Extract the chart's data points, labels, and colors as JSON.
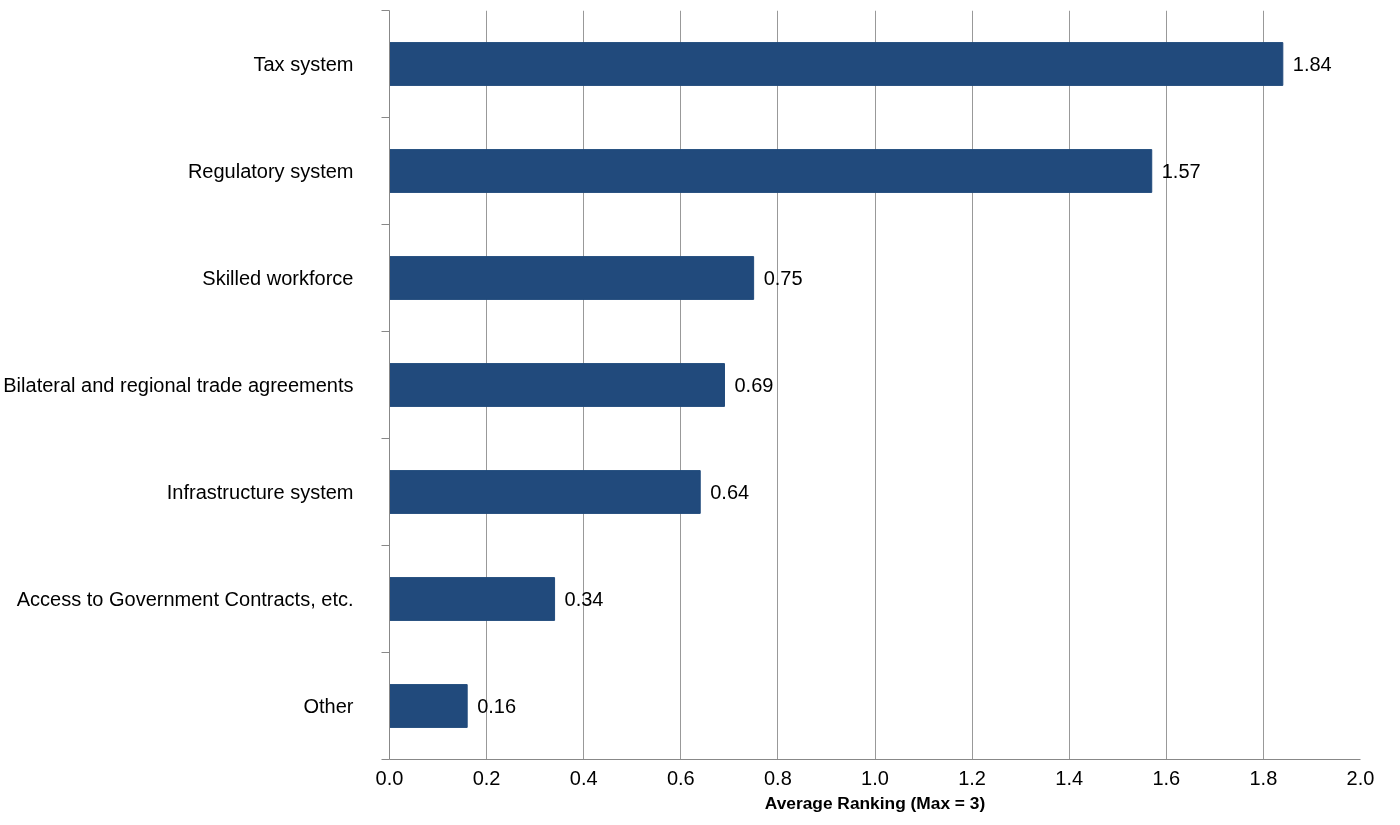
{
  "chart_data": {
    "type": "bar",
    "orientation": "horizontal",
    "xlabel": "Average Ranking (Max = 3)",
    "categories": [
      "Tax system",
      "Regulatory system",
      "Skilled workforce",
      "Bilateral and regional trade agreements",
      "Infrastructure system",
      "Access to Government Contracts, etc.",
      "Other"
    ],
    "values": [
      1.84,
      1.57,
      0.75,
      0.69,
      0.64,
      0.34,
      0.16
    ],
    "color": "#214a7c",
    "xlim": [
      0,
      2
    ],
    "xticks": [
      {
        "value": 0,
        "label": "0.0"
      },
      {
        "value": 0.2,
        "label": "0.2"
      },
      {
        "value": 0.4,
        "label": "0.4"
      },
      {
        "value": 0.6,
        "label": "0.6"
      },
      {
        "value": 0.8,
        "label": "0.8"
      },
      {
        "value": 1.0,
        "label": "1.0"
      },
      {
        "value": 1.2,
        "label": "1.2"
      },
      {
        "value": 1.4,
        "label": "1.4"
      },
      {
        "value": 1.6,
        "label": "1.6"
      },
      {
        "value": 1.8,
        "label": "1.8"
      },
      {
        "value": 2.0,
        "label": "2.0"
      }
    ],
    "grid": "x",
    "data_labels": true
  }
}
